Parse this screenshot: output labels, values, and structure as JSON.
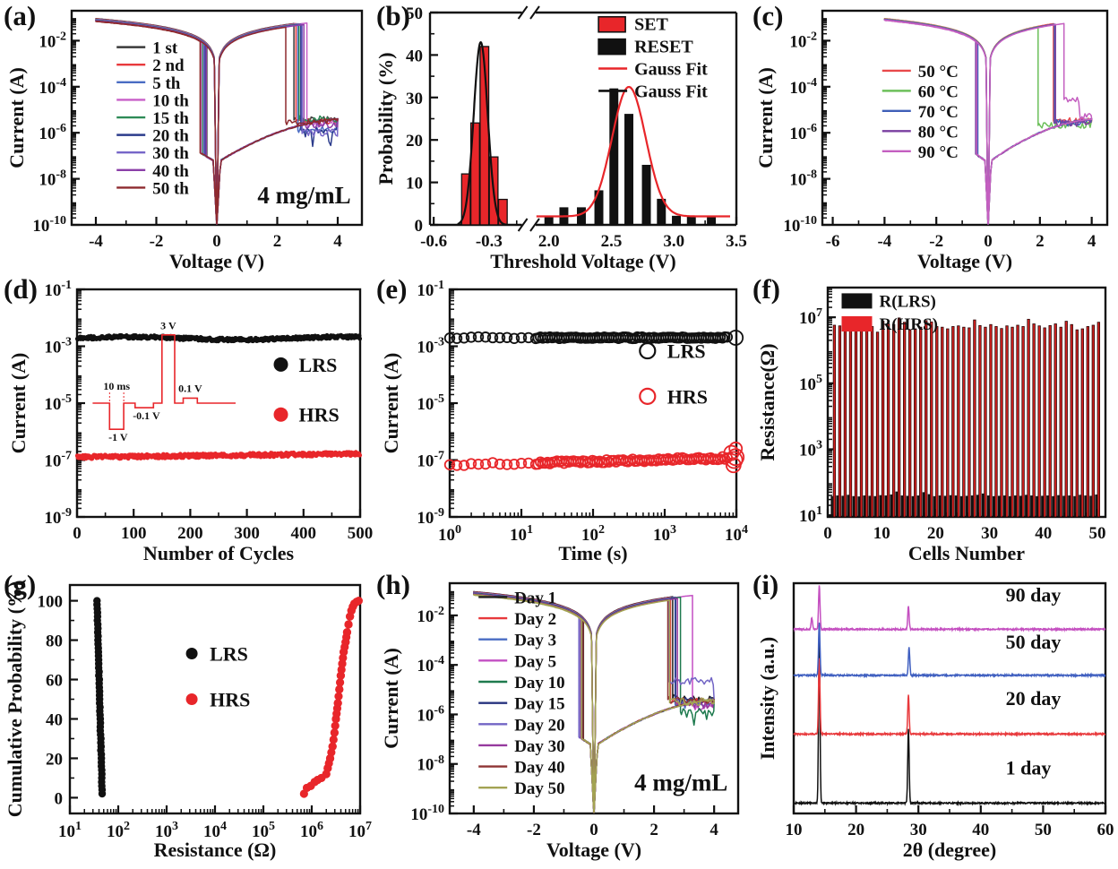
{
  "chart_data": [
    {
      "id": "a",
      "panel_label": "(a)",
      "type": "iv",
      "xlabel": "Voltage (V)",
      "ylabel": "Current (A)",
      "annotation": "4 mg/mL",
      "xlim": [
        -4.8,
        4.8
      ],
      "xticks": [
        -4,
        -2,
        0,
        2,
        4
      ],
      "x_minor_step": 1,
      "ylim_exp": [
        -10,
        -0.7
      ],
      "ytick_exps": [
        -2,
        -4,
        -6,
        -8,
        -10
      ],
      "legend_pos": [
        0.155,
        0.17,
        0.082
      ],
      "series": [
        {
          "name": "1 st",
          "color": "#3a3a3a",
          "set_v": -0.33,
          "reset_v": 2.55,
          "tail_level": -5.45
        },
        {
          "name": "2 nd",
          "color": "#e8393c",
          "set_v": -0.36,
          "reset_v": 2.62,
          "tail_level": -5.5
        },
        {
          "name": "5 th",
          "color": "#4a6cc3",
          "set_v": -0.4,
          "reset_v": 2.68,
          "tail_level": -5.85
        },
        {
          "name": "10 th",
          "color": "#c85fc8",
          "set_v": -0.52,
          "reset_v": 2.98,
          "tail_level": -5.6
        },
        {
          "name": "15 th",
          "color": "#2e8b57",
          "set_v": -0.47,
          "reset_v": 2.72,
          "tail_level": -5.4
        },
        {
          "name": "20 th",
          "color": "#2c3c8c",
          "set_v": -0.38,
          "reset_v": 2.78,
          "tail_level": -5.9,
          "tail_noisy": true
        },
        {
          "name": "30 th",
          "color": "#7666c8",
          "set_v": -0.43,
          "reset_v": 2.82,
          "tail_level": -6.0,
          "tail_noisy": true
        },
        {
          "name": "40 th",
          "color": "#8b3fa8",
          "set_v": -0.35,
          "reset_v": 2.88,
          "tail_level": -5.7
        },
        {
          "name": "50 th",
          "color": "#8e2a2e",
          "set_v": -0.55,
          "reset_v": 2.28,
          "tail_level": -5.55
        }
      ]
    },
    {
      "id": "b",
      "panel_label": "(b)",
      "type": "hist",
      "xlabel": "Threshold Voltage (V)",
      "ylabel": "Probability (%)",
      "ylim": [
        0,
        50
      ],
      "yticks": [
        0,
        10,
        20,
        30,
        40,
        50
      ],
      "y_minor_step": 5,
      "x_left": {
        "lim": [
          -0.62,
          -0.13
        ],
        "frac": [
          0,
          0.295
        ],
        "ticks": [
          -0.6,
          -0.3
        ],
        "minor": [
          -0.45,
          -0.15
        ]
      },
      "x_right": {
        "lim": [
          1.87,
          3.5
        ],
        "frac": [
          0.335,
          1
        ],
        "ticks": [
          2.0,
          2.5,
          3.0,
          3.5
        ],
        "minor": [
          2.25,
          2.75,
          3.25
        ]
      },
      "set_bars": {
        "color": "#e8262a",
        "width": 0.047,
        "centers": [
          -0.425,
          -0.375,
          -0.325,
          -0.275,
          -0.225
        ],
        "values": [
          12,
          24,
          42,
          16,
          6
        ]
      },
      "reset_bars": {
        "color": "#111111",
        "width": 0.062,
        "centers": [
          2.0,
          2.12,
          2.26,
          2.4,
          2.52,
          2.64,
          2.78,
          2.9,
          3.02,
          3.14,
          3.3
        ],
        "values": [
          2,
          4,
          4,
          8,
          32,
          26,
          14,
          6,
          2,
          2,
          2
        ]
      },
      "gauss_set": {
        "color": "#111111",
        "mu": -0.345,
        "sigma": 0.038,
        "amp": 43,
        "base": 0,
        "range": [
          -0.47,
          -0.2
        ]
      },
      "gauss_reset": {
        "color": "#e8262a",
        "mu": 2.64,
        "sigma": 0.135,
        "amp": 30.5,
        "base": 2,
        "range": [
          1.9,
          3.45
        ]
      },
      "legend": [
        {
          "label": "SET",
          "swatch": "rect",
          "color": "#e8262a"
        },
        {
          "label": "RESET",
          "swatch": "rect",
          "color": "#111111"
        },
        {
          "label": "Gauss Fit",
          "swatch": "line",
          "color": "#e8262a"
        },
        {
          "label": "Gauss Fit",
          "swatch": "line",
          "color": "#111111"
        }
      ],
      "legend_pos": [
        0.55,
        0.02,
        0.105
      ]
    },
    {
      "id": "c",
      "panel_label": "(c)",
      "type": "iv",
      "xlabel": "Voltage (V)",
      "ylabel": "Current (A)",
      "annotation": "",
      "xlim": [
        -6.4,
        4.6
      ],
      "xticks": [
        -6,
        -4,
        -2,
        0,
        2,
        4
      ],
      "x_minor_step": 1,
      "ylim_exp": [
        -10,
        -0.7
      ],
      "ytick_exps": [
        -2,
        -4,
        -6,
        -8,
        -10
      ],
      "legend_pos": [
        0.21,
        0.28,
        0.094
      ],
      "series": [
        {
          "name": "50 °C",
          "color": "#e8494b",
          "set_v": -0.42,
          "reset_v": 2.52,
          "tail_level": -5.5
        },
        {
          "name": "60 °C",
          "color": "#6cbf5a",
          "set_v": -0.45,
          "reset_v": 1.93,
          "tail_level": -5.7
        },
        {
          "name": "70 °C",
          "color": "#3f5fb8",
          "set_v": -0.4,
          "reset_v": 2.56,
          "tail_level": -5.55
        },
        {
          "name": "80 °C",
          "color": "#7a3fa0",
          "set_v": -0.48,
          "reset_v": 2.6,
          "tail_level": -5.6
        },
        {
          "name": "90 °C",
          "color": "#c45fc0",
          "set_v": -0.44,
          "reset_v": 2.93,
          "tail_level": -4.55,
          "tail_step": 3.55
        }
      ]
    },
    {
      "id": "d",
      "panel_label": "(d)",
      "type": "endurance",
      "xlabel": "Number of Cycles",
      "ylabel": "Current (A)",
      "xlim": [
        0,
        500
      ],
      "xticks": [
        0,
        100,
        200,
        300,
        400,
        500
      ],
      "x_minor_step": 50,
      "ylim_exp": [
        -9,
        -1
      ],
      "ytick_exps": [
        -1,
        -3,
        -5,
        -7,
        -9
      ],
      "n_points": 500,
      "lrs": {
        "label": "LRS",
        "color": "#111111",
        "log_level": -2.72,
        "spread": 0.12
      },
      "hrs": {
        "label": "HRS",
        "color": "#e8262a",
        "log_level": -6.9,
        "spread": 0.14
      },
      "legend_pos": [
        0.72,
        0.33,
        0.22
      ],
      "inset_labels": {
        "width": "10 ms",
        "p1": "-1 V",
        "p2": "-0.1 V",
        "p3": "3 V",
        "p4": "0.1 V"
      }
    },
    {
      "id": "e",
      "panel_label": "(e)",
      "type": "retention",
      "xlabel": "Time (s)",
      "ylabel": "Current (A)",
      "xlim_exp": [
        0,
        4
      ],
      "xtick_exps": [
        0,
        1,
        2,
        3,
        4
      ],
      "ylim_exp": [
        -9,
        -1
      ],
      "ytick_exps": [
        -1,
        -3,
        -5,
        -7,
        -9
      ],
      "lrs": {
        "label": "LRS",
        "color": "#111111",
        "log_level": -2.7
      },
      "hrs": {
        "label": "HRS",
        "color": "#e8262a",
        "log_start": -7.18,
        "log_end": -6.92
      },
      "legend_pos": [
        0.69,
        0.27,
        0.2
      ]
    },
    {
      "id": "f",
      "panel_label": "(f)",
      "type": "bars",
      "xlabel": "Cells Number",
      "ylabel": "Resistance(Ω)",
      "xlim": [
        0,
        51.5
      ],
      "xticks": [
        0,
        10,
        20,
        30,
        40,
        50
      ],
      "x_minor_step": 2,
      "ylim_exp": [
        0.95,
        7.9
      ],
      "ytick_exps": [
        1,
        3,
        5,
        7
      ],
      "legend": [
        {
          "label": "R(LRS)",
          "color": "#111111"
        },
        {
          "label": "R(HRS)",
          "color": "#e8262a"
        }
      ],
      "legend_pos": [
        0.05,
        0.025,
        0.1
      ],
      "hrs_log": [
        6.76,
        6.74,
        6.72,
        6.78,
        6.95,
        6.7,
        6.75,
        6.72,
        6.55,
        6.88,
        6.8,
        6.78,
        6.98,
        6.85,
        6.62,
        6.65,
        6.7,
        6.9,
        6.86,
        6.72,
        6.7,
        6.65,
        6.72,
        6.74,
        6.7,
        6.68,
        6.92,
        6.75,
        6.7,
        6.78,
        6.72,
        6.66,
        6.74,
        6.7,
        6.76,
        6.72,
        6.94,
        6.8,
        6.74,
        6.68,
        6.75,
        6.8,
        6.7,
        6.88,
        6.78,
        6.62,
        6.65,
        6.72,
        6.76,
        6.85
      ],
      "lrs_log": [
        1.58,
        1.6,
        1.59,
        1.62,
        1.58,
        1.57,
        1.6,
        1.59,
        1.58,
        1.61,
        1.6,
        1.63,
        1.72,
        1.6,
        1.59,
        1.58,
        1.6,
        1.7,
        1.64,
        1.58,
        1.6,
        1.59,
        1.61,
        1.6,
        1.58,
        1.59,
        1.6,
        1.62,
        1.66,
        1.6,
        1.58,
        1.59,
        1.6,
        1.58,
        1.6,
        1.59,
        1.62,
        1.6,
        1.58,
        1.59,
        1.6,
        1.58,
        1.61,
        1.59,
        1.6,
        1.58,
        1.62,
        1.6,
        1.59,
        1.63
      ]
    },
    {
      "id": "g",
      "panel_label": "(g)",
      "type": "cdf",
      "xlabel": "Resistance (Ω)",
      "ylabel": "Cumulative Probability (%)",
      "xlim_exp": [
        1,
        7
      ],
      "xtick_exps": [
        1,
        2,
        3,
        4,
        5,
        6,
        7
      ],
      "ylim": [
        -8,
        108
      ],
      "yticks": [
        0,
        20,
        40,
        60,
        80,
        100
      ],
      "y_minor_step": 10,
      "lrs": {
        "label": "LRS",
        "color": "#111111",
        "x_log_at_bottom": 1.67,
        "x_log_at_top": 1.56
      },
      "hrs": {
        "label": "HRS",
        "color": "#e8262a",
        "anchors": [
          [
            5.84,
            2
          ],
          [
            5.9,
            5
          ],
          [
            5.98,
            6
          ],
          [
            6.06,
            8
          ],
          [
            6.12,
            9
          ],
          [
            6.2,
            10
          ],
          [
            6.3,
            12
          ],
          [
            6.33,
            15
          ],
          [
            6.38,
            20
          ],
          [
            6.43,
            26
          ],
          [
            6.47,
            33
          ],
          [
            6.5,
            40
          ],
          [
            6.54,
            48
          ],
          [
            6.57,
            55
          ],
          [
            6.6,
            62
          ],
          [
            6.63,
            68
          ],
          [
            6.66,
            74
          ],
          [
            6.7,
            79
          ],
          [
            6.73,
            84
          ],
          [
            6.76,
            88
          ],
          [
            6.79,
            92
          ],
          [
            6.82,
            95
          ],
          [
            6.85,
            97
          ],
          [
            6.88,
            98.5
          ],
          [
            6.93,
            99.5
          ],
          [
            6.97,
            100
          ]
        ]
      },
      "legend_pos": [
        0.42,
        0.3,
        0.2
      ]
    },
    {
      "id": "h",
      "panel_label": "(h)",
      "type": "iv",
      "xlabel": "Voltage (V)",
      "ylabel": "Current (A)",
      "annotation": "4 mg/mL",
      "xlim": [
        -4.8,
        4.8
      ],
      "xticks": [
        -4,
        -2,
        0,
        2,
        4
      ],
      "x_minor_step": 1,
      "ylim_exp": [
        -10,
        -0.7
      ],
      "ytick_exps": [
        -2,
        -4,
        -6,
        -8,
        -10
      ],
      "legend_pos": [
        0.1,
        0.06,
        0.092
      ],
      "series": [
        {
          "name": "Day 1",
          "color": "#1f1f1f",
          "set_v": -0.35,
          "reset_v": 2.62,
          "tail_level": -5.35
        },
        {
          "name": "Day 2",
          "color": "#e8393c",
          "set_v": -0.38,
          "reset_v": 2.55,
          "tail_level": -5.5
        },
        {
          "name": "Day 3",
          "color": "#4a6cc3",
          "set_v": -0.45,
          "reset_v": 2.7,
          "tail_level": -5.6
        },
        {
          "name": "Day 5",
          "color": "#c34fc3",
          "set_v": -0.42,
          "reset_v": 3.28,
          "tail_level": -5.7
        },
        {
          "name": "Day 10",
          "color": "#1e7a4e",
          "set_v": -0.4,
          "reset_v": 2.88,
          "tail_level": -5.9,
          "tail_noisy": true
        },
        {
          "name": "Day 15",
          "color": "#27337f",
          "set_v": -0.37,
          "reset_v": 2.72,
          "tail_level": -5.45
        },
        {
          "name": "Day 20",
          "color": "#7265c5",
          "set_v": -0.5,
          "reset_v": 2.5,
          "tail_level": -4.65
        },
        {
          "name": "Day 30",
          "color": "#963a9e",
          "set_v": -0.44,
          "reset_v": 2.78,
          "tail_level": -5.6
        },
        {
          "name": "Day 40",
          "color": "#8e3434",
          "set_v": -0.36,
          "reset_v": 2.46,
          "tail_level": -5.4
        },
        {
          "name": "Day 50",
          "color": "#a3a353",
          "set_v": -0.41,
          "reset_v": 2.52,
          "tail_level": -5.5
        }
      ]
    },
    {
      "id": "i",
      "panel_label": "(i)",
      "type": "xrd",
      "xlabel": "2θ (degree)",
      "ylabel": "Intensity (a.u.)",
      "xlim": [
        10,
        60
      ],
      "xticks": [
        10,
        20,
        30,
        40,
        50,
        60
      ],
      "x_minor_step": 5,
      "traces": [
        {
          "name": "1 day",
          "color": "#111111",
          "offset": 0.045,
          "label_pos": [
            44,
            0.17
          ],
          "peaks": [
            [
              14.1,
              0.72
            ],
            [
              28.4,
              0.32
            ]
          ]
        },
        {
          "name": "20 day",
          "color": "#e8393c",
          "offset": 0.345,
          "label_pos": [
            44,
            0.47
          ],
          "peaks": [
            [
              14.1,
              0.33
            ],
            [
              28.4,
              0.17
            ]
          ]
        },
        {
          "name": "50 day",
          "color": "#3f5fc0",
          "offset": 0.6,
          "label_pos": [
            44,
            0.715
          ],
          "peaks": [
            [
              14.1,
              0.23
            ],
            [
              28.5,
              0.12
            ]
          ]
        },
        {
          "name": "90 day",
          "color": "#c44fc0",
          "offset": 0.8,
          "label_pos": [
            44,
            0.92
          ],
          "peaks": [
            [
              12.9,
              0.05
            ],
            [
              14.1,
              0.19
            ],
            [
              28.4,
              0.1
            ]
          ]
        }
      ]
    }
  ]
}
